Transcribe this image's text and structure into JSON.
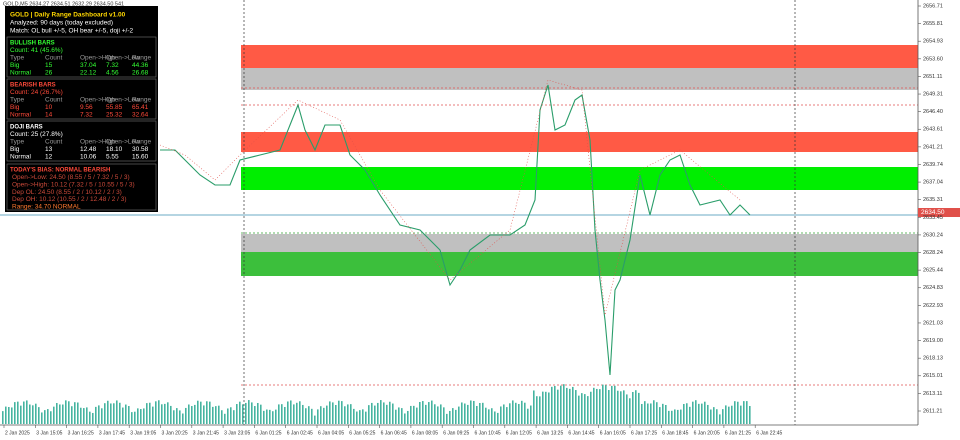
{
  "header": {
    "symbol_info": "GOLD,M5  2634.27 2634.51 2632.29 2634.50 541"
  },
  "dashboard": {
    "title": "GOLD | Daily Range Dashboard  v1.00",
    "analyzed": "Analyzed: 90 days  (today excluded)",
    "match": "Match: OL bull +/-5, OH bear +/-5, doji +/-2",
    "sections": [
      {
        "title": "BULLISH BARS",
        "count": "Count: 41  (45.6%)",
        "columns": [
          "Type",
          "Count",
          "Open->High",
          "Open->Low",
          "Range"
        ],
        "rows": [
          [
            "Big",
            "15",
            "37.04",
            "7.32",
            "44.36"
          ],
          [
            "Normal",
            "26",
            "22.12",
            "4.56",
            "26.68"
          ]
        ]
      },
      {
        "title": "BEARISH BARS",
        "count": "Count: 24  (26.7%)",
        "columns": [
          "Type",
          "Count",
          "Open->High",
          "Open->Low",
          "Range"
        ],
        "rows": [
          [
            "Big",
            "10",
            "9.56",
            "55.85",
            "65.41"
          ],
          [
            "Normal",
            "14",
            "7.32",
            "25.32",
            "32.64"
          ]
        ]
      },
      {
        "title": "DOJI BARS",
        "count": "Count: 25  (27.8%)",
        "columns": [
          "Type",
          "Count",
          "Open->High",
          "Open->Low",
          "Range"
        ],
        "rows": [
          [
            "Big",
            "13",
            "12.48",
            "18.10",
            "30.58"
          ],
          [
            "Normal",
            "12",
            "10.06",
            "5.55",
            "15.60"
          ]
        ]
      }
    ],
    "bias": {
      "title": "TODAY'S BIAS: NORMAL BEARISH",
      "lines": [
        "Open->Low: 24.50  (8.55 / 5 / 7.32 / 5 / 3)",
        "Open->High: 10.12  (7.32 / 5 / 10.55 / 5 / 3)",
        "Dep OL: 24.50  (8.55 / 2 / 10.12 / 2 / 3)",
        "Dep OH: 10.12  (10.55 / 2 / 12.48 / 2 / 3)",
        "Range: 34.70  NORMAL"
      ]
    }
  },
  "price_axis": [
    "2656.71",
    "2655.81",
    "2654.93",
    "2653.60",
    "2651.11",
    "2649.31",
    "2646.40",
    "2643.61",
    "2641.21",
    "2639.74",
    "2637.04",
    "2635.31",
    "2633.45",
    "2630.24",
    "2628.24",
    "2625.44",
    "2624.83",
    "2622.93",
    "2621.03",
    "2619.00",
    "2618.13",
    "2615.01",
    "2613.11",
    "2611.21"
  ],
  "current_price": "2634.50",
  "time_axis": [
    "2 Jan 2025",
    "3 Jan 15:05",
    "3 Jan 16:25",
    "3 Jan 17:45",
    "3 Jan 19:05",
    "3 Jan 20:25",
    "3 Jan 21:45",
    "3 Jan 23:05",
    "6 Jan 01:25",
    "6 Jan 02:45",
    "6 Jan 04:05",
    "6 Jan 05:25",
    "6 Jan 06:45",
    "6 Jan 08:05",
    "6 Jan 09:25",
    "6 Jan 10:45",
    "6 Jan 12:05",
    "6 Jan 13:25",
    "6 Jan 14:45",
    "6 Jan 16:05",
    "6 Jan 17:25",
    "6 Jan 18:45",
    "6 Jan 20:05",
    "6 Jan 21:25",
    "6 Jan 22:45"
  ]
}
